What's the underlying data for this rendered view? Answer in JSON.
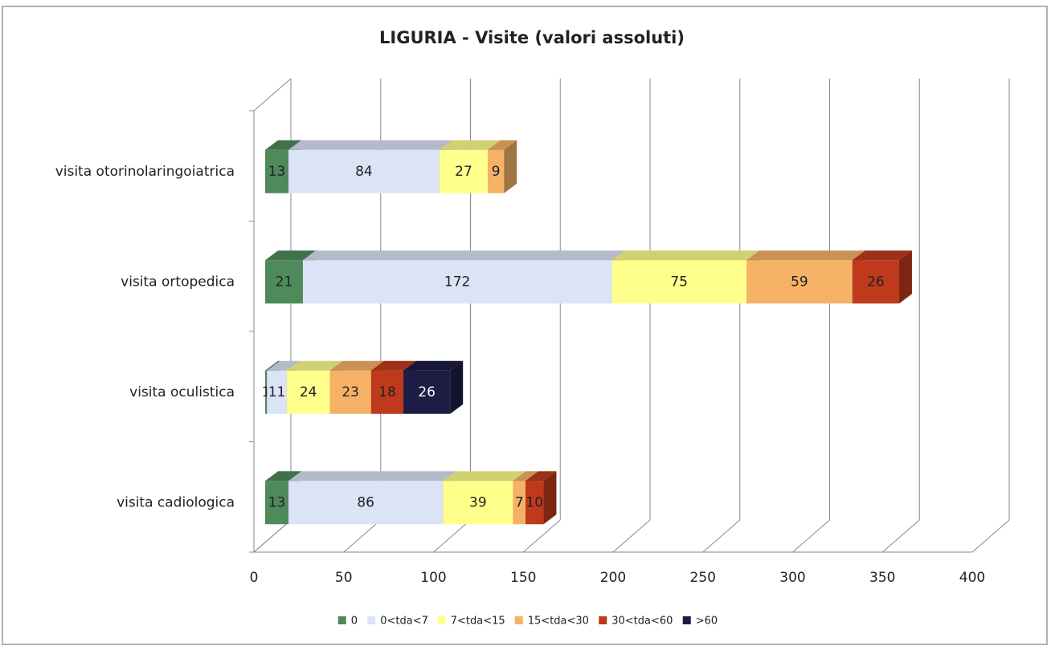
{
  "chart_data": {
    "type": "bar",
    "orientation": "horizontal",
    "stacked": true,
    "title": "LIGURIA - Visite (valori assoluti)",
    "categories": [
      "visita otorinolaringoiatrica",
      "visita ortopedica",
      "visita oculistica",
      "visita cadiologica"
    ],
    "series": [
      {
        "name": "0",
        "color": "#4f8a5b",
        "values": [
          13,
          21,
          1,
          13
        ]
      },
      {
        "name": "0<tda<7",
        "color": "#dbe3f6",
        "values": [
          84,
          172,
          11,
          86
        ]
      },
      {
        "name": "7<tda<15",
        "color": "#ffff8c",
        "values": [
          27,
          75,
          24,
          39
        ]
      },
      {
        "name": "15<tda<30",
        "color": "#f5b266",
        "values": [
          9,
          59,
          23,
          7
        ]
      },
      {
        "name": "30<tda<60",
        "color": "#bf3a1c",
        "values": [
          null,
          26,
          18,
          10
        ]
      },
      {
        "name": ">60",
        "color": "#1c1d45",
        "values": [
          null,
          null,
          26,
          null
        ]
      }
    ],
    "xlim": [
      0,
      400
    ],
    "xticks": [
      0,
      50,
      100,
      150,
      200,
      250,
      300,
      350,
      400
    ],
    "grid": true,
    "legend": "bottom"
  }
}
